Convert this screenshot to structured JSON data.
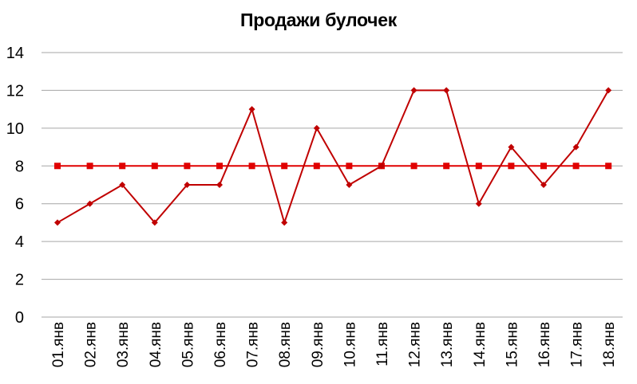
{
  "chart_data": {
    "type": "line",
    "title": "Продажи булочек",
    "xlabel": "",
    "ylabel": "",
    "categories": [
      "01.янв",
      "02.янв",
      "03.янв",
      "04.янв",
      "05.янв",
      "06.янв",
      "07.янв",
      "08.янв",
      "09.янв",
      "10.янв",
      "11.янв",
      "12.янв",
      "13.янв",
      "14.янв",
      "15.янв",
      "16.янв",
      "17.янв",
      "18.янв"
    ],
    "ylim": [
      0,
      14
    ],
    "yticks": [
      0,
      2,
      4,
      6,
      8,
      10,
      12,
      14
    ],
    "grid": true,
    "legend": "none",
    "series": [
      {
        "values": [
          5,
          6,
          7,
          5,
          7,
          7,
          11,
          5,
          10,
          7,
          8,
          12,
          12,
          6,
          9,
          7,
          9,
          12
        ],
        "marker": "diamond",
        "color": "#c00000"
      },
      {
        "values": [
          8,
          8,
          8,
          8,
          8,
          8,
          8,
          8,
          8,
          8,
          8,
          8,
          8,
          8,
          8,
          8,
          8,
          8
        ],
        "marker": "square",
        "color": "#e00000"
      }
    ],
    "gridline_color": "#a6a6a6"
  }
}
